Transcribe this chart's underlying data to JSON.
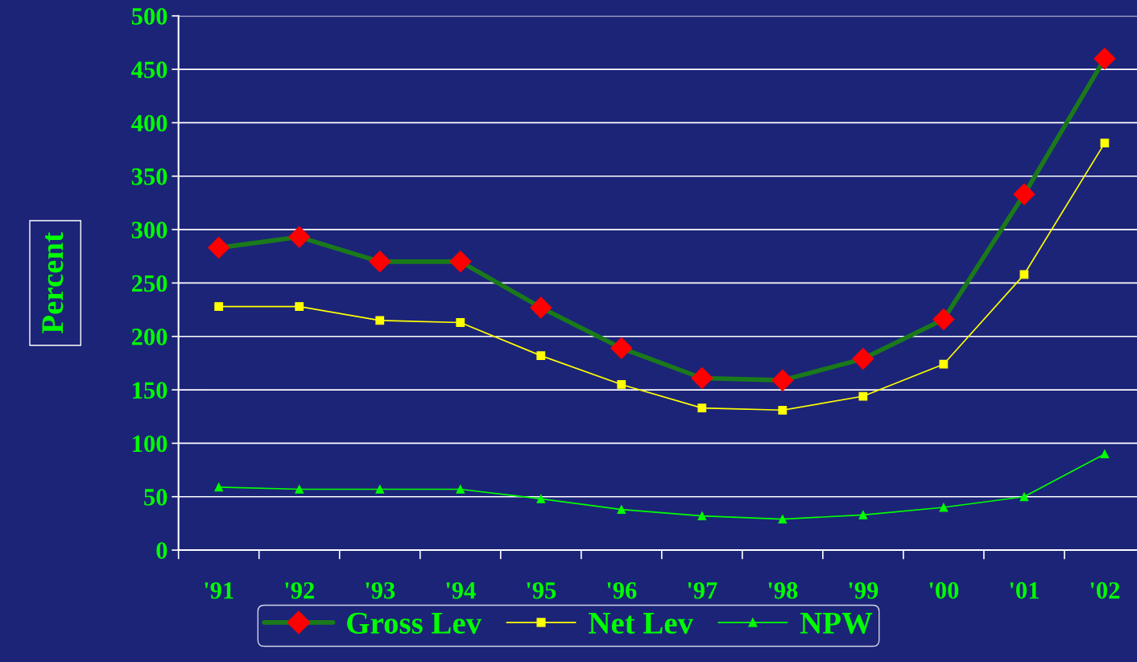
{
  "chart_data": {
    "type": "line",
    "ylabel": "Percent",
    "categories": [
      "'91",
      "'92",
      "'93",
      "'94",
      "'95",
      "'96",
      "'97",
      "'98",
      "'99",
      "'00",
      "'01",
      "'02"
    ],
    "series": [
      {
        "name": "Gross Lev",
        "color": "#1a7a1a",
        "colors": [
          "#ff0000",
          "#ff0000",
          "#ff0000",
          "#ff0000",
          "#ff0000",
          "#ff0000",
          "#ff0000",
          "#ff0000",
          "#ff0000",
          "#ff0000",
          "#ff0000",
          "#ff0000"
        ],
        "marker": "diamond",
        "values": [
          283,
          293,
          270,
          270,
          227,
          189,
          161,
          159,
          179,
          216,
          333,
          460
        ]
      },
      {
        "name": "Net Lev",
        "color": "#ffff00",
        "marker": "square",
        "values": [
          228,
          228,
          215,
          213,
          182,
          155,
          133,
          131,
          144,
          174,
          258,
          381
        ]
      },
      {
        "name": "NPW",
        "color": "#00ff00",
        "marker": "triangle",
        "values": [
          59,
          57,
          57,
          57,
          48,
          38,
          32,
          29,
          33,
          40,
          50,
          90
        ]
      }
    ],
    "ylim": [
      0,
      500
    ],
    "yticks": [
      0,
      50,
      100,
      150,
      200,
      250,
      300,
      350,
      400,
      450,
      500
    ],
    "grid": "y",
    "legend": "bottom",
    "line_style": "solid"
  }
}
